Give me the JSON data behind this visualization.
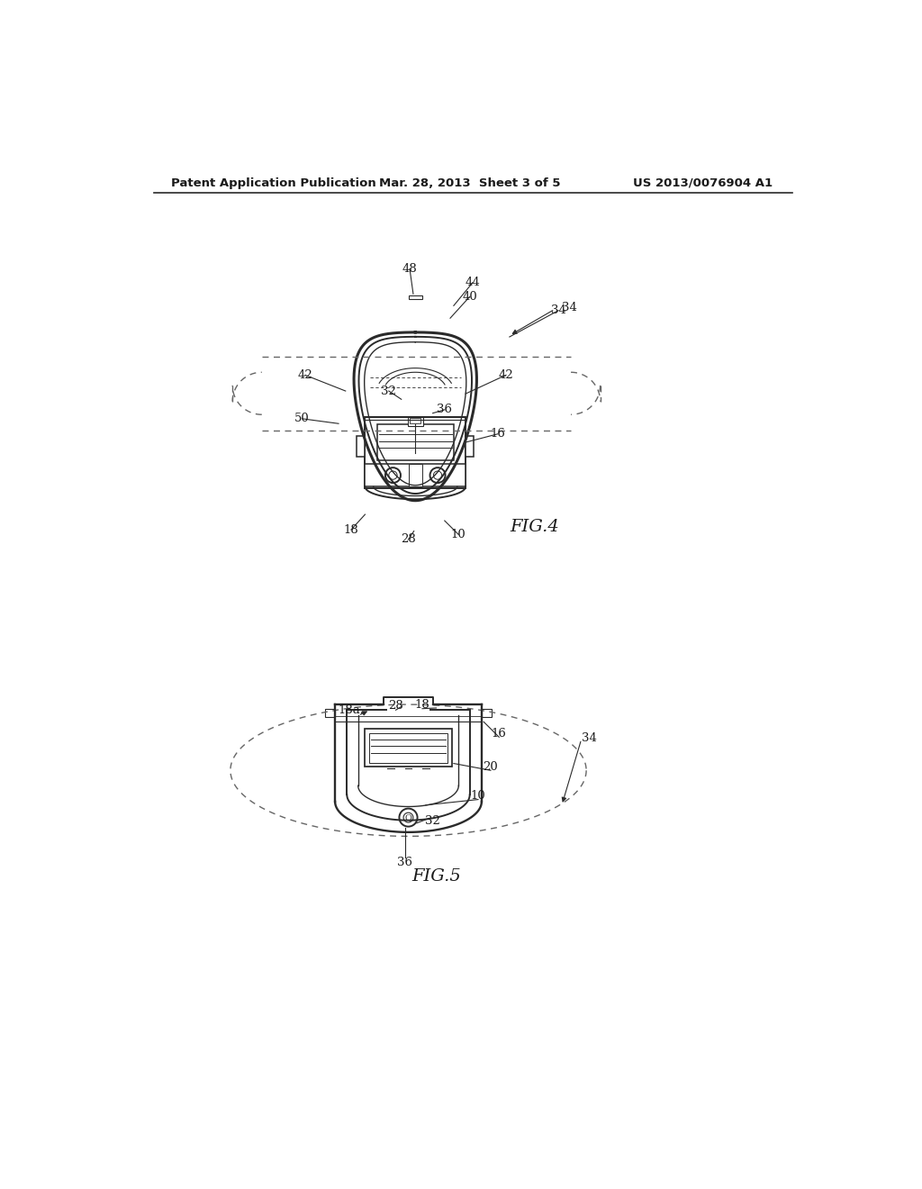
{
  "bg_color": "#ffffff",
  "header_left": "Patent Application Publication",
  "header_center": "Mar. 28, 2013  Sheet 3 of 5",
  "header_right": "US 2013/0076904 A1",
  "fig4_label": "FIG.4",
  "fig5_label": "FIG.5",
  "line_color": "#2a2a2a",
  "dashed_color": "#666666",
  "text_color": "#1a1a1a"
}
